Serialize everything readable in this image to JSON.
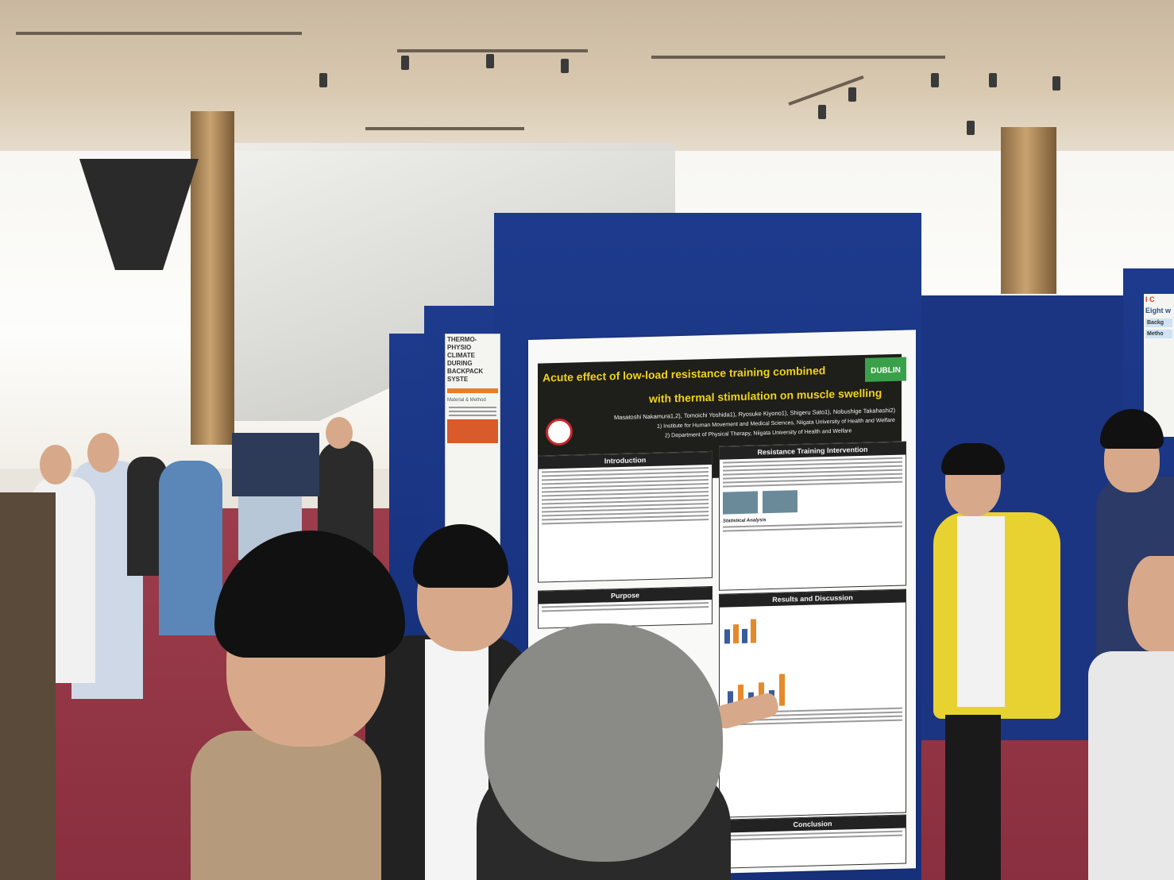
{
  "poster": {
    "title_line1": "Acute effect of low-load resistance training combined",
    "title_line2": "with thermal stimulation on muscle swelling",
    "authors": "Masatoshi Nakamura1,2), Tomoichi Yoshida1), Ryosuke Kiyono1), Shigeru Sato1), Nobushige Takahashi2)",
    "affiliation1": "1)  Institute for Human Movement and Medical Sciences, Niigata University of Health and Welfare",
    "affiliation2": "2)  Department of Physical Therapy, Niigata University of Health and Welfare",
    "badge": "DUBLIN",
    "sections": {
      "introduction": "Introduction",
      "purpose": "Purpose",
      "intervention": "Resistance Training Intervention",
      "results": "Results and Discussion",
      "conclusion": "Conclusion",
      "statistical": "Statistical Analysis"
    }
  },
  "side_poster": {
    "title": "THERMO-PHYSIO CLIMATE DURING BACKPACK SYSTE",
    "section": "Material & Method"
  },
  "right_poster": {
    "logo": "I C",
    "title": "Eight w",
    "box1": "Backg",
    "box2": "Metho"
  }
}
